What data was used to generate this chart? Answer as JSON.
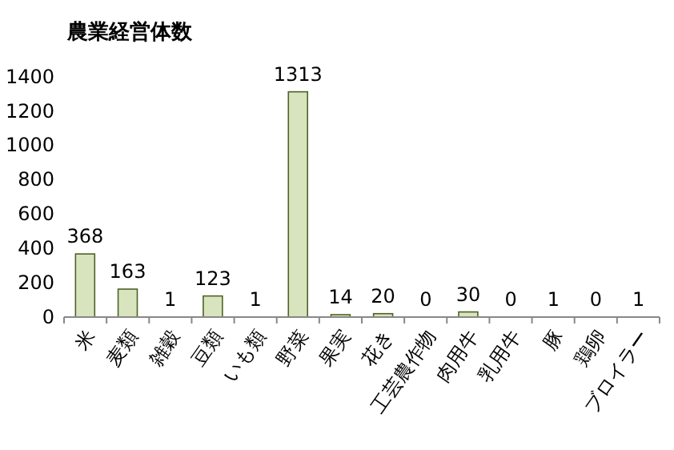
{
  "chart_data": {
    "type": "bar",
    "title": "農業経営体数",
    "categories": [
      "米",
      "麦類",
      "雑穀",
      "豆類",
      "いも類",
      "野菜",
      "果実",
      "花き",
      "工芸農作物",
      "肉用牛",
      "乳用牛",
      "豚",
      "鶏卵",
      "ブロイラー"
    ],
    "values": [
      368,
      163,
      1,
      123,
      1,
      1313,
      14,
      20,
      0,
      30,
      0,
      1,
      0,
      1
    ],
    "color": "#d7e4bd",
    "ylim": [
      0,
      1400
    ],
    "yticks": [
      0,
      200,
      400,
      600,
      800,
      1000,
      1200,
      1400
    ],
    "data_labels": true,
    "grid": false
  }
}
